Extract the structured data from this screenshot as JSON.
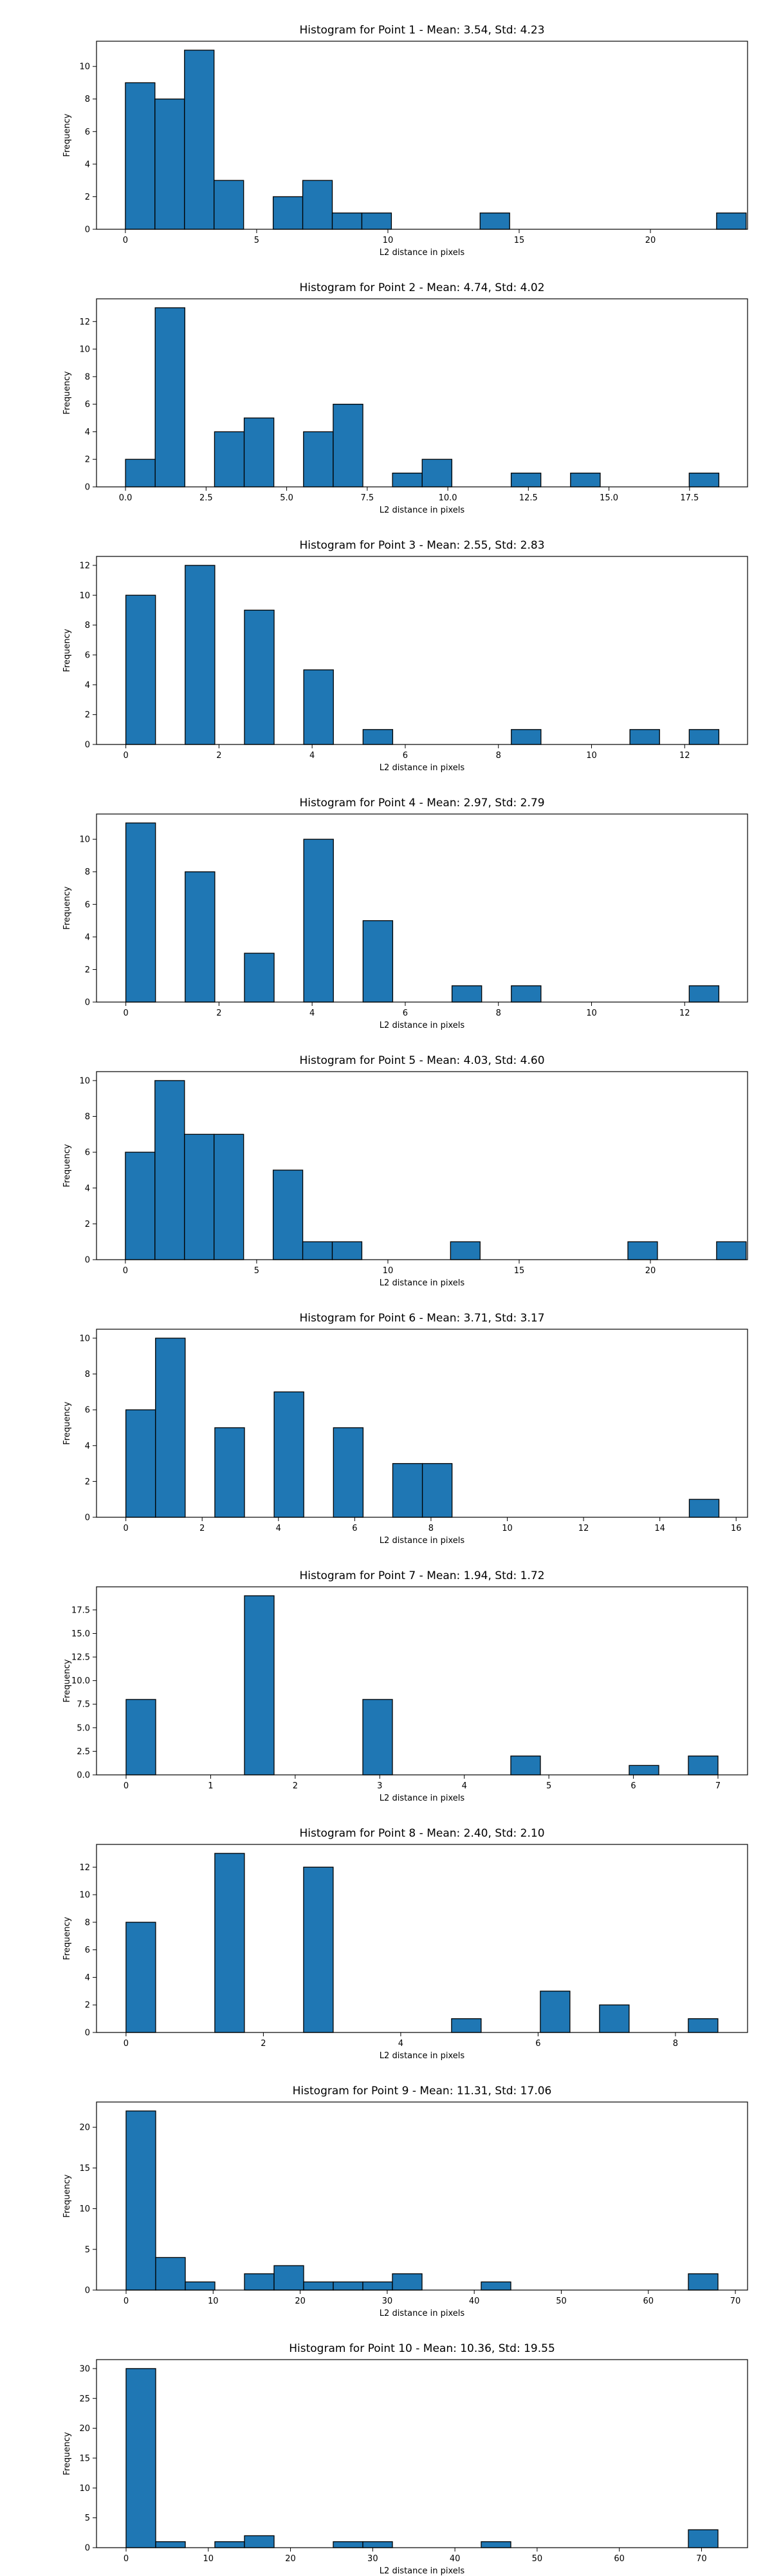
{
  "chart_data": [
    {
      "type": "bar",
      "title": "Histogram for Point 1 - Mean: 3.54, Std: 4.23",
      "xlabel": "L2 distance in pixels",
      "ylabel": "Frequency",
      "xlim": [
        -1.1,
        23.7
      ],
      "ylim": [
        0,
        11.55
      ],
      "bin_start": 0,
      "bin_width": 1.126,
      "values": [
        9,
        8,
        11,
        3,
        0,
        2,
        3,
        1,
        1,
        0,
        0,
        0,
        1,
        0,
        0,
        0,
        0,
        0,
        0,
        0,
        1
      ],
      "xticks": [
        {
          "v": 0,
          "t": "0"
        },
        {
          "v": 5,
          "t": "5"
        },
        {
          "v": 10,
          "t": "10"
        },
        {
          "v": 15,
          "t": "15"
        },
        {
          "v": 20,
          "t": "20"
        }
      ],
      "yticks": [
        {
          "v": 0,
          "t": "0"
        },
        {
          "v": 2,
          "t": "2"
        },
        {
          "v": 4,
          "t": "4"
        },
        {
          "v": 6,
          "t": "6"
        },
        {
          "v": 8,
          "t": "8"
        },
        {
          "v": 10,
          "t": "10"
        }
      ]
    },
    {
      "type": "bar",
      "title": "Histogram for Point 2 - Mean: 4.74, Std: 4.02",
      "xlabel": "L2 distance in pixels",
      "ylabel": "Frequency",
      "xlim": [
        -0.9,
        19.3
      ],
      "ylim": [
        0,
        13.65
      ],
      "bin_start": 0,
      "bin_width": 0.9205,
      "values": [
        2,
        13,
        0,
        4,
        5,
        0,
        4,
        6,
        0,
        1,
        2,
        0,
        0,
        1,
        0,
        1,
        0,
        0,
        0,
        1
      ],
      "xticks": [
        {
          "v": 0,
          "t": "0.0"
        },
        {
          "v": 2.5,
          "t": "2.5"
        },
        {
          "v": 5,
          "t": "5.0"
        },
        {
          "v": 7.5,
          "t": "7.5"
        },
        {
          "v": 10,
          "t": "10.0"
        },
        {
          "v": 12.5,
          "t": "12.5"
        },
        {
          "v": 15,
          "t": "15.0"
        },
        {
          "v": 17.5,
          "t": "17.5"
        }
      ],
      "yticks": [
        {
          "v": 0,
          "t": "0"
        },
        {
          "v": 2,
          "t": "2"
        },
        {
          "v": 4,
          "t": "4"
        },
        {
          "v": 6,
          "t": "6"
        },
        {
          "v": 8,
          "t": "8"
        },
        {
          "v": 10,
          "t": "10"
        },
        {
          "v": 12,
          "t": "12"
        }
      ]
    },
    {
      "type": "bar",
      "title": "Histogram for Point 3 - Mean: 2.55, Std: 2.83",
      "xlabel": "L2 distance in pixels",
      "ylabel": "Frequency",
      "xlim": [
        -0.63,
        13.35
      ],
      "ylim": [
        0,
        12.6
      ],
      "bin_start": 0,
      "bin_width": 0.6367,
      "values": [
        10,
        0,
        12,
        0,
        9,
        0,
        5,
        0,
        1,
        0,
        0,
        0,
        0,
        1,
        0,
        0,
        0,
        1,
        0,
        1
      ],
      "xticks": [
        {
          "v": 0,
          "t": "0"
        },
        {
          "v": 2,
          "t": "2"
        },
        {
          "v": 4,
          "t": "4"
        },
        {
          "v": 6,
          "t": "6"
        },
        {
          "v": 8,
          "t": "8"
        },
        {
          "v": 10,
          "t": "10"
        },
        {
          "v": 12,
          "t": "12"
        }
      ],
      "yticks": [
        {
          "v": 0,
          "t": "0"
        },
        {
          "v": 2,
          "t": "2"
        },
        {
          "v": 4,
          "t": "4"
        },
        {
          "v": 6,
          "t": "6"
        },
        {
          "v": 8,
          "t": "8"
        },
        {
          "v": 10,
          "t": "10"
        },
        {
          "v": 12,
          "t": "12"
        }
      ]
    },
    {
      "type": "bar",
      "title": "Histogram for Point 4 - Mean: 2.97, Std: 2.79",
      "xlabel": "L2 distance in pixels",
      "ylabel": "Frequency",
      "xlim": [
        -0.63,
        13.35
      ],
      "ylim": [
        0,
        11.55
      ],
      "bin_start": 0,
      "bin_width": 0.6367,
      "values": [
        11,
        0,
        8,
        0,
        3,
        0,
        10,
        0,
        5,
        0,
        0,
        1,
        0,
        1,
        0,
        0,
        0,
        0,
        0,
        1
      ],
      "xticks": [
        {
          "v": 0,
          "t": "0"
        },
        {
          "v": 2,
          "t": "2"
        },
        {
          "v": 4,
          "t": "4"
        },
        {
          "v": 6,
          "t": "6"
        },
        {
          "v": 8,
          "t": "8"
        },
        {
          "v": 10,
          "t": "10"
        },
        {
          "v": 12,
          "t": "12"
        }
      ],
      "yticks": [
        {
          "v": 0,
          "t": "0"
        },
        {
          "v": 2,
          "t": "2"
        },
        {
          "v": 4,
          "t": "4"
        },
        {
          "v": 6,
          "t": "6"
        },
        {
          "v": 8,
          "t": "8"
        },
        {
          "v": 10,
          "t": "10"
        }
      ]
    },
    {
      "type": "bar",
      "title": "Histogram for Point 5 - Mean: 4.03, Std: 4.60",
      "xlabel": "L2 distance in pixels",
      "ylabel": "Frequency",
      "xlim": [
        -1.1,
        23.7
      ],
      "ylim": [
        0,
        10.5
      ],
      "bin_start": 0,
      "bin_width": 1.126,
      "values": [
        6,
        10,
        7,
        7,
        0,
        5,
        1,
        1,
        0,
        0,
        0,
        1,
        0,
        0,
        0,
        0,
        0,
        1,
        0,
        0,
        1
      ],
      "xticks": [
        {
          "v": 0,
          "t": "0"
        },
        {
          "v": 5,
          "t": "5"
        },
        {
          "v": 10,
          "t": "10"
        },
        {
          "v": 15,
          "t": "15"
        },
        {
          "v": 20,
          "t": "20"
        }
      ],
      "yticks": [
        {
          "v": 0,
          "t": "0"
        },
        {
          "v": 2,
          "t": "2"
        },
        {
          "v": 4,
          "t": "4"
        },
        {
          "v": 6,
          "t": "6"
        },
        {
          "v": 8,
          "t": "8"
        },
        {
          "v": 10,
          "t": "10"
        }
      ]
    },
    {
      "type": "bar",
      "title": "Histogram for Point 6 - Mean: 3.71, Std: 3.17",
      "xlabel": "L2 distance in pixels",
      "ylabel": "Frequency",
      "xlim": [
        -0.77,
        16.3
      ],
      "ylim": [
        0,
        10.5
      ],
      "bin_start": 0,
      "bin_width": 0.7775,
      "values": [
        6,
        10,
        0,
        5,
        0,
        7,
        0,
        5,
        0,
        3,
        3,
        0,
        0,
        0,
        0,
        0,
        0,
        0,
        0,
        1
      ],
      "xticks": [
        {
          "v": 0,
          "t": "0"
        },
        {
          "v": 2,
          "t": "2"
        },
        {
          "v": 4,
          "t": "4"
        },
        {
          "v": 6,
          "t": "6"
        },
        {
          "v": 8,
          "t": "8"
        },
        {
          "v": 10,
          "t": "10"
        },
        {
          "v": 12,
          "t": "12"
        },
        {
          "v": 14,
          "t": "14"
        },
        {
          "v": 16,
          "t": "16"
        }
      ],
      "yticks": [
        {
          "v": 0,
          "t": "0"
        },
        {
          "v": 2,
          "t": "2"
        },
        {
          "v": 4,
          "t": "4"
        },
        {
          "v": 6,
          "t": "6"
        },
        {
          "v": 8,
          "t": "8"
        },
        {
          "v": 10,
          "t": "10"
        }
      ]
    },
    {
      "type": "bar",
      "title": "Histogram for Point 7 - Mean: 1.94, Std: 1.72",
      "xlabel": "L2 distance in pixels",
      "ylabel": "Frequency",
      "xlim": [
        -0.35,
        7.35
      ],
      "ylim": [
        0,
        19.95
      ],
      "bin_start": 0,
      "bin_width": 0.35,
      "values": [
        8,
        0,
        0,
        0,
        19,
        0,
        0,
        0,
        8,
        0,
        0,
        0,
        0,
        2,
        0,
        0,
        0,
        1,
        0,
        2
      ],
      "xticks": [
        {
          "v": 0,
          "t": "0"
        },
        {
          "v": 1,
          "t": "1"
        },
        {
          "v": 2,
          "t": "2"
        },
        {
          "v": 3,
          "t": "3"
        },
        {
          "v": 4,
          "t": "4"
        },
        {
          "v": 5,
          "t": "5"
        },
        {
          "v": 6,
          "t": "6"
        },
        {
          "v": 7,
          "t": "7"
        }
      ],
      "yticks": [
        {
          "v": 0,
          "t": "0.0"
        },
        {
          "v": 2.5,
          "t": "2.5"
        },
        {
          "v": 5,
          "t": "5.0"
        },
        {
          "v": 7.5,
          "t": "7.5"
        },
        {
          "v": 10,
          "t": "10.0"
        },
        {
          "v": 12.5,
          "t": "12.5"
        },
        {
          "v": 15,
          "t": "15.0"
        },
        {
          "v": 17.5,
          "t": "17.5"
        }
      ]
    },
    {
      "type": "bar",
      "title": "Histogram for Point 8 - Mean: 2.40, Std: 2.10",
      "xlabel": "L2 distance in pixels",
      "ylabel": "Frequency",
      "xlim": [
        -0.43,
        9.05
      ],
      "ylim": [
        0,
        13.65
      ],
      "bin_start": 0,
      "bin_width": 0.4309,
      "values": [
        8,
        0,
        0,
        13,
        0,
        0,
        12,
        0,
        0,
        0,
        0,
        1,
        0,
        0,
        3,
        0,
        2,
        0,
        0,
        1
      ],
      "xticks": [
        {
          "v": 0,
          "t": "0"
        },
        {
          "v": 2,
          "t": "2"
        },
        {
          "v": 4,
          "t": "4"
        },
        {
          "v": 6,
          "t": "6"
        },
        {
          "v": 8,
          "t": "8"
        }
      ],
      "yticks": [
        {
          "v": 0,
          "t": "0"
        },
        {
          "v": 2,
          "t": "2"
        },
        {
          "v": 4,
          "t": "4"
        },
        {
          "v": 6,
          "t": "6"
        },
        {
          "v": 8,
          "t": "8"
        },
        {
          "v": 10,
          "t": "10"
        },
        {
          "v": 12,
          "t": "12"
        }
      ]
    },
    {
      "type": "bar",
      "title": "Histogram for Point 9 - Mean: 11.31, Std: 17.06",
      "xlabel": "L2 distance in pixels",
      "ylabel": "Frequency",
      "xlim": [
        -3.4,
        71.4
      ],
      "ylim": [
        0,
        23.1
      ],
      "bin_start": 0,
      "bin_width": 3.4,
      "values": [
        22,
        4,
        1,
        0,
        2,
        3,
        1,
        1,
        1,
        2,
        0,
        0,
        1,
        0,
        0,
        0,
        0,
        0,
        0,
        2
      ],
      "xticks": [
        {
          "v": 0,
          "t": "0"
        },
        {
          "v": 10,
          "t": "10"
        },
        {
          "v": 20,
          "t": "20"
        },
        {
          "v": 30,
          "t": "30"
        },
        {
          "v": 40,
          "t": "40"
        },
        {
          "v": 50,
          "t": "50"
        },
        {
          "v": 60,
          "t": "60"
        },
        {
          "v": 70,
          "t": "70"
        }
      ],
      "yticks": [
        {
          "v": 0,
          "t": "0"
        },
        {
          "v": 5,
          "t": "5"
        },
        {
          "v": 10,
          "t": "10"
        },
        {
          "v": 15,
          "t": "15"
        },
        {
          "v": 20,
          "t": "20"
        }
      ]
    },
    {
      "type": "bar",
      "title": "Histogram for Point 10 - Mean: 10.36, Std: 19.55",
      "xlabel": "L2 distance in pixels",
      "ylabel": "Frequency",
      "xlim": [
        -3.6,
        75.6
      ],
      "ylim": [
        0,
        31.5
      ],
      "bin_start": 0,
      "bin_width": 3.6,
      "values": [
        30,
        1,
        0,
        1,
        2,
        0,
        0,
        1,
        1,
        0,
        0,
        0,
        1,
        0,
        0,
        0,
        0,
        0,
        0,
        3
      ],
      "xticks": [
        {
          "v": 0,
          "t": "0"
        },
        {
          "v": 10,
          "t": "10"
        },
        {
          "v": 20,
          "t": "20"
        },
        {
          "v": 30,
          "t": "30"
        },
        {
          "v": 40,
          "t": "40"
        },
        {
          "v": 50,
          "t": "50"
        },
        {
          "v": 60,
          "t": "60"
        },
        {
          "v": 70,
          "t": "70"
        }
      ],
      "yticks": [
        {
          "v": 0,
          "t": "0"
        },
        {
          "v": 5,
          "t": "5"
        },
        {
          "v": 10,
          "t": "10"
        },
        {
          "v": 15,
          "t": "15"
        },
        {
          "v": 20,
          "t": "20"
        },
        {
          "v": 25,
          "t": "25"
        },
        {
          "v": 30,
          "t": "30"
        }
      ]
    }
  ],
  "colors": {
    "bar_fill": "#1f77b4",
    "bar_edge": "#000000",
    "axis": "#000000"
  }
}
